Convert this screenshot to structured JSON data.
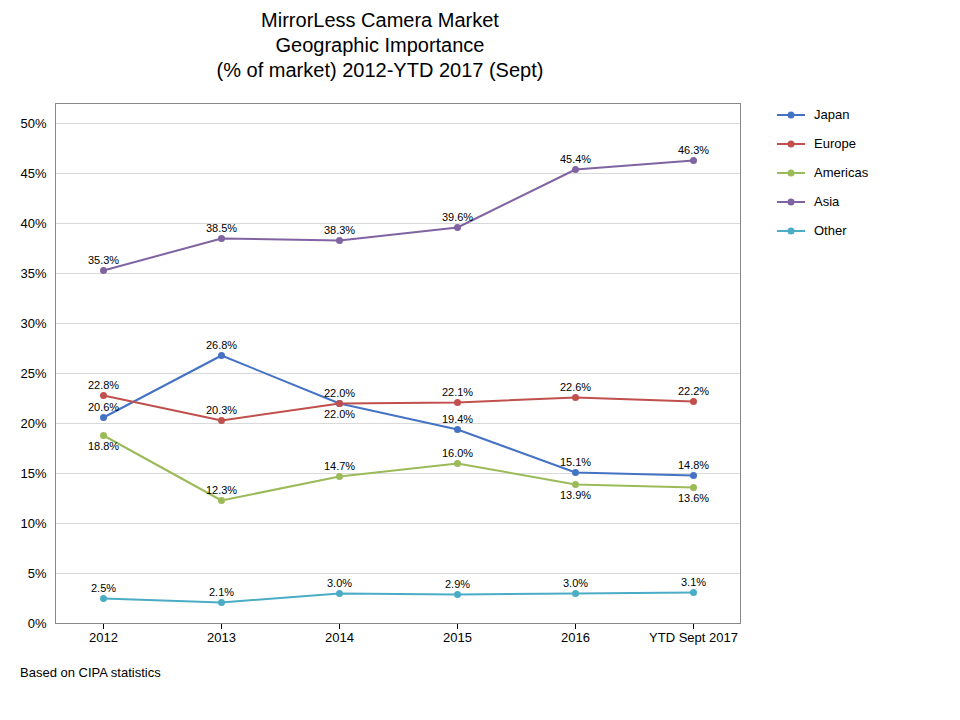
{
  "chart_data": {
    "type": "line",
    "title": "MirrorLess Camera Market\nGeographic Importance\n(% of market) 2012-YTD 2017 (Sept)",
    "annotations": [
      "Based on CIPA statistics"
    ],
    "categories": [
      "2012",
      "2013",
      "2014",
      "2015",
      "2016",
      "YTD Sept 2017"
    ],
    "series": [
      {
        "name": "Japan",
        "color": "#4472C4",
        "values": [
          20.6,
          26.8,
          22.0,
          19.4,
          15.1,
          14.8
        ],
        "value_labels": [
          "20.6%",
          "26.8%",
          "22.0%",
          "19.4%",
          "15.1%",
          "14.8%"
        ]
      },
      {
        "name": "Europe",
        "color": "#C0504D",
        "values": [
          22.8,
          20.3,
          22.0,
          22.1,
          22.6,
          22.2
        ],
        "value_labels": [
          "22.8%",
          "20.3%",
          "22.0%",
          "22.1%",
          "22.6%",
          "22.2%"
        ]
      },
      {
        "name": "Americas",
        "color": "#9BBB59",
        "values": [
          18.8,
          12.3,
          14.7,
          16.0,
          13.9,
          13.6
        ],
        "value_labels": [
          "18.8%",
          "12.3%",
          "14.7%",
          "16.0%",
          "13.9%",
          "13.6%"
        ]
      },
      {
        "name": "Asia",
        "color": "#8064A2",
        "values": [
          35.3,
          38.5,
          38.3,
          39.6,
          45.4,
          46.3
        ],
        "value_labels": [
          "35.3%",
          "38.5%",
          "38.3%",
          "39.6%",
          "45.4%",
          "46.3%"
        ]
      },
      {
        "name": "Other",
        "color": "#4BACC6",
        "values": [
          2.5,
          2.1,
          3.0,
          2.9,
          3.0,
          3.1
        ],
        "value_labels": [
          "2.5%",
          "2.1%",
          "3.0%",
          "2.9%",
          "3.0%",
          "3.1%"
        ]
      }
    ],
    "ylim": [
      0,
      52
    ],
    "yticks": [
      {
        "value": 0,
        "label": "0%"
      },
      {
        "value": 5,
        "label": "5%"
      },
      {
        "value": 10,
        "label": "10%"
      },
      {
        "value": 15,
        "label": "15%"
      },
      {
        "value": 20,
        "label": "20%"
      },
      {
        "value": 25,
        "label": "25%"
      },
      {
        "value": 30,
        "label": "30%"
      },
      {
        "value": 35,
        "label": "35%"
      },
      {
        "value": 40,
        "label": "40%"
      },
      {
        "value": 45,
        "label": "45%"
      },
      {
        "value": 50,
        "label": "50%"
      }
    ],
    "grid": true,
    "legend": "right",
    "marker": "circle",
    "data_labels": true
  }
}
